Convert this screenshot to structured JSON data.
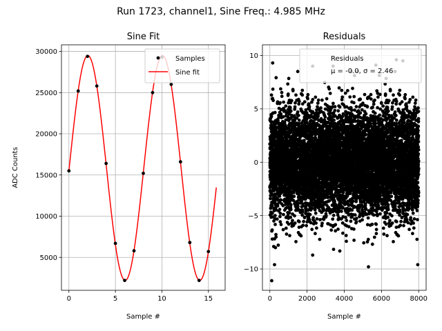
{
  "figure": {
    "suptitle": "Run 1723, channel1, Sine Freq.: 4.985 MHz"
  },
  "chart_data": [
    {
      "type": "line",
      "title": "Sine Fit",
      "xlabel": "Sample #",
      "ylabel": "ADC Counts",
      "xlim": [
        -0.8,
        16.8
      ],
      "ylim": [
        1000,
        30800
      ],
      "xticks": [
        0,
        5,
        10,
        15
      ],
      "yticks": [
        5000,
        10000,
        15000,
        20000,
        25000,
        30000
      ],
      "grid": true,
      "legend": {
        "position": "top-right",
        "entries": [
          "Samples",
          "Sine fit"
        ]
      },
      "series": [
        {
          "name": "Samples",
          "style": "scatter",
          "color": "#000000",
          "x": [
            0,
            1,
            2,
            3,
            4,
            5,
            6,
            7,
            8,
            9,
            10,
            11,
            12,
            13,
            14,
            15
          ],
          "y": [
            15500,
            25200,
            29400,
            25800,
            16400,
            6700,
            2200,
            5800,
            15200,
            25000,
            29300,
            26000,
            16600,
            6800,
            2200,
            5700
          ]
        },
        {
          "name": "Sine fit",
          "style": "line",
          "color": "#ff0000",
          "model": {
            "amplitude": 13650,
            "offset": 15850,
            "period_samples": 8.02,
            "phase_rad": -0.0255
          },
          "x_range": [
            0,
            15.85
          ]
        }
      ]
    },
    {
      "type": "scatter",
      "title": "Residuals",
      "xlabel": "Sample #",
      "ylabel": "",
      "xlim": [
        -400,
        8400
      ],
      "ylim": [
        -12,
        11
      ],
      "xticks": [
        0,
        2000,
        4000,
        6000,
        8000
      ],
      "yticks": [
        -10,
        -5,
        0,
        5,
        10
      ],
      "grid": true,
      "legend": {
        "position": "top-right",
        "entries": [
          "Residuals",
          "μ = -0.0, σ = 2.46"
        ]
      },
      "series": [
        {
          "name": "Residuals",
          "color": "#000000",
          "x_range": [
            0,
            8000
          ],
          "n_points": 8000,
          "mean": 0.0,
          "std": 2.46,
          "outliers": [
            {
              "x": 100,
              "y": -11.1
            },
            {
              "x": 250,
              "y": -9.6
            },
            {
              "x": 5300,
              "y": -9.8
            },
            {
              "x": 7950,
              "y": -9.6
            },
            {
              "x": 2300,
              "y": 9.0
            },
            {
              "x": 6800,
              "y": 9.6
            },
            {
              "x": 7150,
              "y": 9.5
            },
            {
              "x": 150,
              "y": 9.3
            },
            {
              "x": 3400,
              "y": 9.0
            },
            {
              "x": 5700,
              "y": 9.1
            },
            {
              "x": 2300,
              "y": -8.7
            },
            {
              "x": 300,
              "y": -8.0
            }
          ]
        }
      ]
    }
  ]
}
